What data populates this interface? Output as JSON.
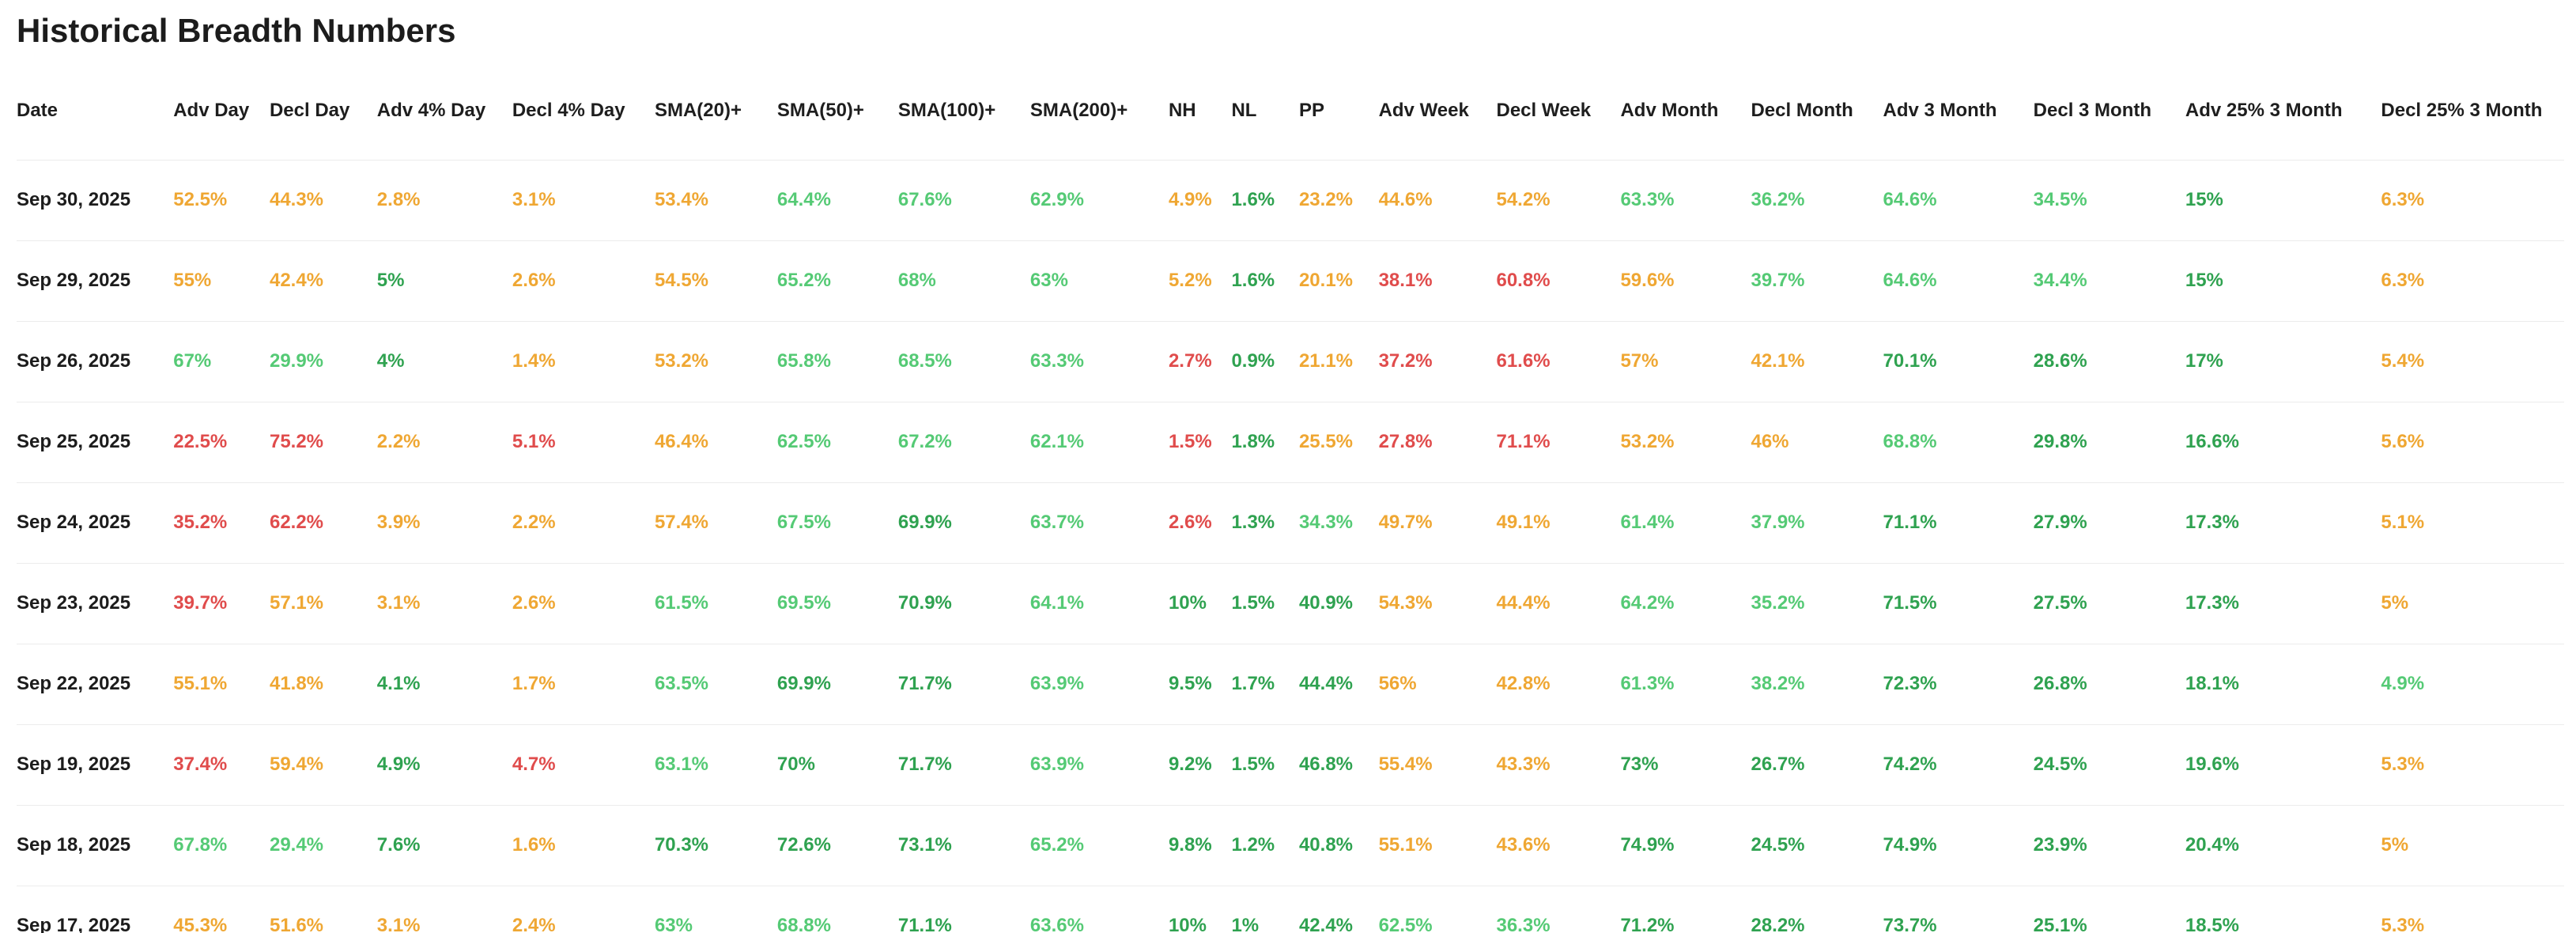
{
  "title": "Historical Breadth Numbers",
  "colors": {
    "green": "#55ca75",
    "dgreen": "#2fa250",
    "orange": "#efa733",
    "red": "#e04c4c",
    "heading_text": "#1c1c1c",
    "divider": "#ececec"
  },
  "table": {
    "columns": [
      "Date",
      "Adv Day",
      "Decl Day",
      "Adv 4% Day",
      "Decl 4% Day",
      "SMA(20)+",
      "SMA(50)+",
      "SMA(100)+",
      "SMA(200)+",
      "NH",
      "NL",
      "PP",
      "Adv Week",
      "Decl Week",
      "Adv Month",
      "Decl Month",
      "Adv 3 Month",
      "Decl 3 Month",
      "Adv 25% 3 Month",
      "Decl 25% 3 Month"
    ],
    "color_legend": {
      "g": "green",
      "dg": "dgreen",
      "o": "orange",
      "r": "red"
    },
    "rows": [
      {
        "date": "Sep 30, 2025",
        "cells": [
          [
            "52.5%",
            "o"
          ],
          [
            "44.3%",
            "o"
          ],
          [
            "2.8%",
            "o"
          ],
          [
            "3.1%",
            "o"
          ],
          [
            "53.4%",
            "o"
          ],
          [
            "64.4%",
            "g"
          ],
          [
            "67.6%",
            "g"
          ],
          [
            "62.9%",
            "g"
          ],
          [
            "4.9%",
            "o"
          ],
          [
            "1.6%",
            "dg"
          ],
          [
            "23.2%",
            "o"
          ],
          [
            "44.6%",
            "o"
          ],
          [
            "54.2%",
            "o"
          ],
          [
            "63.3%",
            "g"
          ],
          [
            "36.2%",
            "g"
          ],
          [
            "64.6%",
            "g"
          ],
          [
            "34.5%",
            "g"
          ],
          [
            "15%",
            "dg"
          ],
          [
            "6.3%",
            "o"
          ]
        ]
      },
      {
        "date": "Sep 29, 2025",
        "cells": [
          [
            "55%",
            "o"
          ],
          [
            "42.4%",
            "o"
          ],
          [
            "5%",
            "dg"
          ],
          [
            "2.6%",
            "o"
          ],
          [
            "54.5%",
            "o"
          ],
          [
            "65.2%",
            "g"
          ],
          [
            "68%",
            "g"
          ],
          [
            "63%",
            "g"
          ],
          [
            "5.2%",
            "o"
          ],
          [
            "1.6%",
            "dg"
          ],
          [
            "20.1%",
            "o"
          ],
          [
            "38.1%",
            "r"
          ],
          [
            "60.8%",
            "r"
          ],
          [
            "59.6%",
            "o"
          ],
          [
            "39.7%",
            "g"
          ],
          [
            "64.6%",
            "g"
          ],
          [
            "34.4%",
            "g"
          ],
          [
            "15%",
            "dg"
          ],
          [
            "6.3%",
            "o"
          ]
        ]
      },
      {
        "date": "Sep 26, 2025",
        "cells": [
          [
            "67%",
            "g"
          ],
          [
            "29.9%",
            "g"
          ],
          [
            "4%",
            "dg"
          ],
          [
            "1.4%",
            "o"
          ],
          [
            "53.2%",
            "o"
          ],
          [
            "65.8%",
            "g"
          ],
          [
            "68.5%",
            "g"
          ],
          [
            "63.3%",
            "g"
          ],
          [
            "2.7%",
            "r"
          ],
          [
            "0.9%",
            "dg"
          ],
          [
            "21.1%",
            "o"
          ],
          [
            "37.2%",
            "r"
          ],
          [
            "61.6%",
            "r"
          ],
          [
            "57%",
            "o"
          ],
          [
            "42.1%",
            "o"
          ],
          [
            "70.1%",
            "dg"
          ],
          [
            "28.6%",
            "dg"
          ],
          [
            "17%",
            "dg"
          ],
          [
            "5.4%",
            "o"
          ]
        ]
      },
      {
        "date": "Sep 25, 2025",
        "cells": [
          [
            "22.5%",
            "r"
          ],
          [
            "75.2%",
            "r"
          ],
          [
            "2.2%",
            "o"
          ],
          [
            "5.1%",
            "r"
          ],
          [
            "46.4%",
            "o"
          ],
          [
            "62.5%",
            "g"
          ],
          [
            "67.2%",
            "g"
          ],
          [
            "62.1%",
            "g"
          ],
          [
            "1.5%",
            "r"
          ],
          [
            "1.8%",
            "dg"
          ],
          [
            "25.5%",
            "o"
          ],
          [
            "27.8%",
            "r"
          ],
          [
            "71.1%",
            "r"
          ],
          [
            "53.2%",
            "o"
          ],
          [
            "46%",
            "o"
          ],
          [
            "68.8%",
            "g"
          ],
          [
            "29.8%",
            "dg"
          ],
          [
            "16.6%",
            "dg"
          ],
          [
            "5.6%",
            "o"
          ]
        ]
      },
      {
        "date": "Sep 24, 2025",
        "cells": [
          [
            "35.2%",
            "r"
          ],
          [
            "62.2%",
            "r"
          ],
          [
            "3.9%",
            "o"
          ],
          [
            "2.2%",
            "o"
          ],
          [
            "57.4%",
            "o"
          ],
          [
            "67.5%",
            "g"
          ],
          [
            "69.9%",
            "dg"
          ],
          [
            "63.7%",
            "g"
          ],
          [
            "2.6%",
            "r"
          ],
          [
            "1.3%",
            "dg"
          ],
          [
            "34.3%",
            "g"
          ],
          [
            "49.7%",
            "o"
          ],
          [
            "49.1%",
            "o"
          ],
          [
            "61.4%",
            "g"
          ],
          [
            "37.9%",
            "g"
          ],
          [
            "71.1%",
            "dg"
          ],
          [
            "27.9%",
            "dg"
          ],
          [
            "17.3%",
            "dg"
          ],
          [
            "5.1%",
            "o"
          ]
        ]
      },
      {
        "date": "Sep 23, 2025",
        "cells": [
          [
            "39.7%",
            "r"
          ],
          [
            "57.1%",
            "o"
          ],
          [
            "3.1%",
            "o"
          ],
          [
            "2.6%",
            "o"
          ],
          [
            "61.5%",
            "g"
          ],
          [
            "69.5%",
            "g"
          ],
          [
            "70.9%",
            "dg"
          ],
          [
            "64.1%",
            "g"
          ],
          [
            "10%",
            "dg"
          ],
          [
            "1.5%",
            "dg"
          ],
          [
            "40.9%",
            "dg"
          ],
          [
            "54.3%",
            "o"
          ],
          [
            "44.4%",
            "o"
          ],
          [
            "64.2%",
            "g"
          ],
          [
            "35.2%",
            "g"
          ],
          [
            "71.5%",
            "dg"
          ],
          [
            "27.5%",
            "dg"
          ],
          [
            "17.3%",
            "dg"
          ],
          [
            "5%",
            "o"
          ]
        ]
      },
      {
        "date": "Sep 22, 2025",
        "cells": [
          [
            "55.1%",
            "o"
          ],
          [
            "41.8%",
            "o"
          ],
          [
            "4.1%",
            "dg"
          ],
          [
            "1.7%",
            "o"
          ],
          [
            "63.5%",
            "g"
          ],
          [
            "69.9%",
            "dg"
          ],
          [
            "71.7%",
            "dg"
          ],
          [
            "63.9%",
            "g"
          ],
          [
            "9.5%",
            "dg"
          ],
          [
            "1.7%",
            "dg"
          ],
          [
            "44.4%",
            "dg"
          ],
          [
            "56%",
            "o"
          ],
          [
            "42.8%",
            "o"
          ],
          [
            "61.3%",
            "g"
          ],
          [
            "38.2%",
            "g"
          ],
          [
            "72.3%",
            "dg"
          ],
          [
            "26.8%",
            "dg"
          ],
          [
            "18.1%",
            "dg"
          ],
          [
            "4.9%",
            "g"
          ]
        ]
      },
      {
        "date": "Sep 19, 2025",
        "cells": [
          [
            "37.4%",
            "r"
          ],
          [
            "59.4%",
            "o"
          ],
          [
            "4.9%",
            "dg"
          ],
          [
            "4.7%",
            "r"
          ],
          [
            "63.1%",
            "g"
          ],
          [
            "70%",
            "dg"
          ],
          [
            "71.7%",
            "dg"
          ],
          [
            "63.9%",
            "g"
          ],
          [
            "9.2%",
            "dg"
          ],
          [
            "1.5%",
            "dg"
          ],
          [
            "46.8%",
            "dg"
          ],
          [
            "55.4%",
            "o"
          ],
          [
            "43.3%",
            "o"
          ],
          [
            "73%",
            "dg"
          ],
          [
            "26.7%",
            "dg"
          ],
          [
            "74.2%",
            "dg"
          ],
          [
            "24.5%",
            "dg"
          ],
          [
            "19.6%",
            "dg"
          ],
          [
            "5.3%",
            "o"
          ]
        ]
      },
      {
        "date": "Sep 18, 2025",
        "cells": [
          [
            "67.8%",
            "g"
          ],
          [
            "29.4%",
            "g"
          ],
          [
            "7.6%",
            "dg"
          ],
          [
            "1.6%",
            "o"
          ],
          [
            "70.3%",
            "dg"
          ],
          [
            "72.6%",
            "dg"
          ],
          [
            "73.1%",
            "dg"
          ],
          [
            "65.2%",
            "g"
          ],
          [
            "9.8%",
            "dg"
          ],
          [
            "1.2%",
            "dg"
          ],
          [
            "40.8%",
            "dg"
          ],
          [
            "55.1%",
            "o"
          ],
          [
            "43.6%",
            "o"
          ],
          [
            "74.9%",
            "dg"
          ],
          [
            "24.5%",
            "dg"
          ],
          [
            "74.9%",
            "dg"
          ],
          [
            "23.9%",
            "dg"
          ],
          [
            "20.4%",
            "dg"
          ],
          [
            "5%",
            "o"
          ]
        ]
      },
      {
        "date": "Sep 17, 2025",
        "cells": [
          [
            "45.3%",
            "o"
          ],
          [
            "51.6%",
            "o"
          ],
          [
            "3.1%",
            "o"
          ],
          [
            "2.4%",
            "o"
          ],
          [
            "63%",
            "g"
          ],
          [
            "68.8%",
            "g"
          ],
          [
            "71.1%",
            "dg"
          ],
          [
            "63.6%",
            "g"
          ],
          [
            "10%",
            "dg"
          ],
          [
            "1%",
            "dg"
          ],
          [
            "42.4%",
            "dg"
          ],
          [
            "62.5%",
            "g"
          ],
          [
            "36.3%",
            "g"
          ],
          [
            "71.2%",
            "dg"
          ],
          [
            "28.2%",
            "dg"
          ],
          [
            "73.7%",
            "dg"
          ],
          [
            "25.1%",
            "dg"
          ],
          [
            "18.5%",
            "dg"
          ],
          [
            "5.3%",
            "o"
          ]
        ]
      }
    ]
  }
}
